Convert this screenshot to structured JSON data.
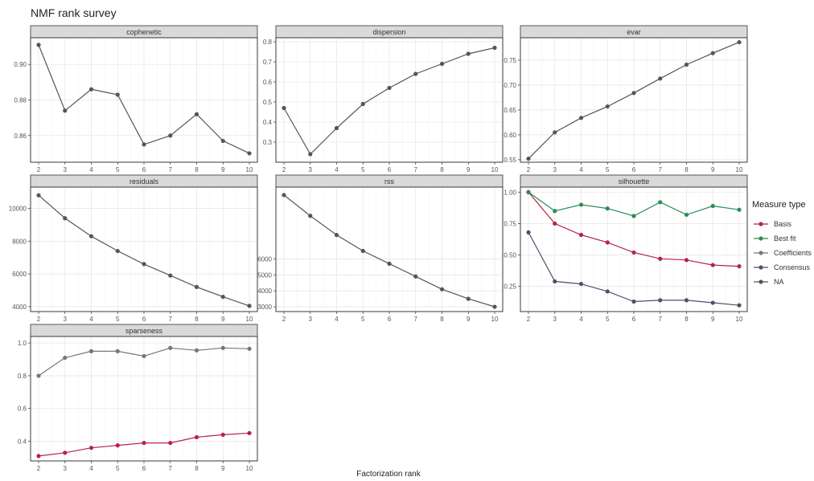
{
  "chart_data": {
    "type": "line",
    "title": "NMF rank survey",
    "xlabel": "Factorization rank",
    "ylabel": "",
    "x": [
      2,
      3,
      4,
      5,
      6,
      7,
      8,
      9,
      10
    ],
    "grid": true,
    "legend": {
      "title": "Measure type",
      "position": "right",
      "entries": [
        {
          "name": "Basis",
          "color": "#b5234a"
        },
        {
          "name": "Best fit",
          "color": "#2e8b57"
        },
        {
          "name": "Coefficients",
          "color": "#777777"
        },
        {
          "name": "Consensus",
          "color": "#5a4a6a"
        },
        {
          "name": "NA",
          "color": "#555555"
        }
      ]
    },
    "panels": [
      {
        "name": "cophenetic",
        "ylim": [
          0.845,
          0.915
        ],
        "yticks": [
          0.86,
          0.88,
          0.9
        ],
        "ytick_labels": [
          "0.86",
          "0.88",
          "0.90"
        ],
        "series": [
          {
            "measure": "NA",
            "values": [
              0.911,
              0.874,
              0.886,
              0.883,
              0.855,
              0.86,
              0.872,
              0.857,
              0.85
            ]
          }
        ]
      },
      {
        "name": "dispersion",
        "ylim": [
          0.2,
          0.82
        ],
        "yticks": [
          0.3,
          0.4,
          0.5,
          0.6,
          0.7,
          0.8
        ],
        "ytick_labels": [
          "0.3",
          "0.4",
          "0.5",
          "0.6",
          "0.7",
          "0.8"
        ],
        "series": [
          {
            "measure": "NA",
            "values": [
              0.47,
              0.24,
              0.37,
              0.49,
              0.57,
              0.64,
              0.69,
              0.74,
              0.77
            ]
          }
        ]
      },
      {
        "name": "evar",
        "ylim": [
          0.545,
          0.795
        ],
        "yticks": [
          0.55,
          0.6,
          0.65,
          0.7,
          0.75
        ],
        "ytick_labels": [
          "0.55",
          "0.60",
          "0.65",
          "0.70",
          "0.75"
        ],
        "series": [
          {
            "measure": "NA",
            "values": [
              0.552,
              0.605,
              0.634,
              0.657,
              0.684,
              0.713,
              0.741,
              0.764,
              0.786
            ]
          }
        ]
      },
      {
        "name": "residuals",
        "ylim": [
          3700,
          11300
        ],
        "yticks": [
          4000,
          6000,
          8000,
          10000
        ],
        "ytick_labels": [
          "4000",
          "6000",
          "8000",
          "10000"
        ],
        "series": [
          {
            "measure": "NA",
            "values": [
              10800,
              9400,
              8300,
              7400,
              6600,
              5900,
              5200,
              4600,
              4050
            ]
          }
        ]
      },
      {
        "name": "rss",
        "ylim": [
          2700,
          10500
        ],
        "yticks": [
          3000,
          4000,
          5000,
          6000
        ],
        "ytick_labels": [
          "3000",
          "4000",
          "5000",
          "6000"
        ],
        "series": [
          {
            "measure": "NA",
            "values": [
              10000,
              8700,
              7500,
              6500,
              5700,
              4900,
              4100,
              3500,
              3000
            ]
          }
        ]
      },
      {
        "name": "silhouette",
        "ylim": [
          0.05,
          1.04
        ],
        "yticks": [
          0.25,
          0.5,
          0.75,
          1.0
        ],
        "ytick_labels": [
          "0.25",
          "0.50",
          "0.75",
          "1.00"
        ],
        "series": [
          {
            "measure": "Basis",
            "values": [
              1.0,
              0.75,
              0.66,
              0.6,
              0.52,
              0.47,
              0.46,
              0.42,
              0.41
            ]
          },
          {
            "measure": "Best fit",
            "values": [
              1.0,
              0.85,
              0.9,
              0.87,
              0.81,
              0.92,
              0.82,
              0.89,
              0.86
            ]
          },
          {
            "measure": "Consensus",
            "values": [
              0.68,
              0.29,
              0.27,
              0.21,
              0.13,
              0.14,
              0.14,
              0.12,
              0.1
            ]
          }
        ]
      },
      {
        "name": "sparseness",
        "ylim": [
          0.28,
          1.04
        ],
        "yticks": [
          0.4,
          0.6,
          0.8,
          1.0
        ],
        "ytick_labels": [
          "0.4",
          "0.6",
          "0.8",
          "1.0"
        ],
        "series": [
          {
            "measure": "Basis",
            "values": [
              0.31,
              0.33,
              0.36,
              0.375,
              0.39,
              0.39,
              0.425,
              0.44,
              0.45
            ]
          },
          {
            "measure": "Coefficients",
            "values": [
              0.8,
              0.91,
              0.95,
              0.95,
              0.92,
              0.97,
              0.955,
              0.97,
              0.965
            ]
          }
        ]
      }
    ]
  }
}
